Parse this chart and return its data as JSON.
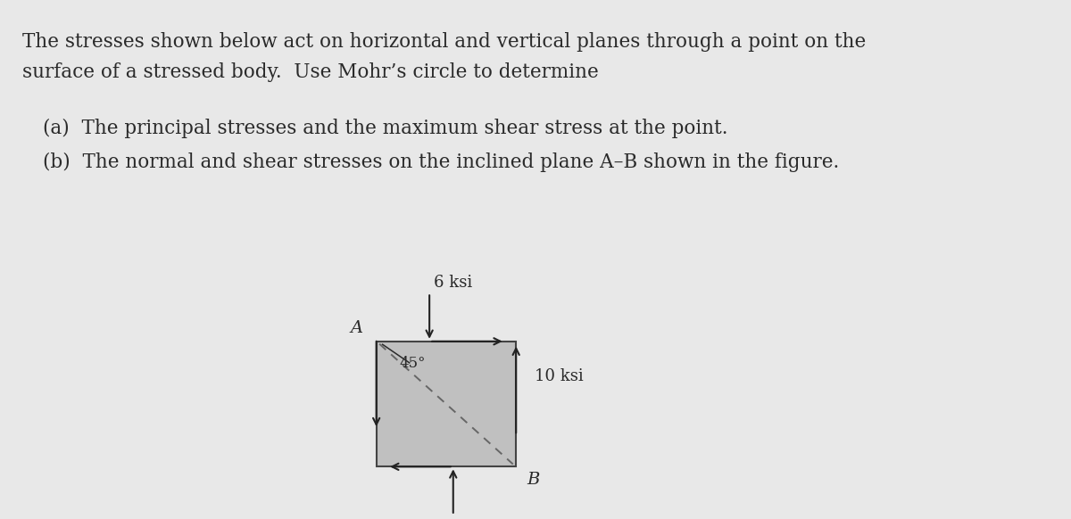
{
  "bg_color": "#e8e8e8",
  "text_color": "#2a2a2a",
  "title_line1": "The stresses shown below act on horizontal and vertical planes through a point on the",
  "title_line2": "surface of a stressed body.  Use Mohr’s circle to determine",
  "item_a": "(a)  The principal stresses and the maximum shear stress at the point.",
  "item_b": "(b)  The normal and shear stresses on the inclined plane A–B shown in the figure.",
  "stress_top": "6 ksi",
  "stress_right": "10 ksi",
  "angle_label": "45°",
  "label_A": "A",
  "label_B": "B",
  "box_facecolor": "#c0c0c0",
  "box_edgecolor": "#444444",
  "arrow_color": "#222222",
  "dashed_color": "#666666",
  "font_size_body": 15.5,
  "font_size_diagram": 13
}
